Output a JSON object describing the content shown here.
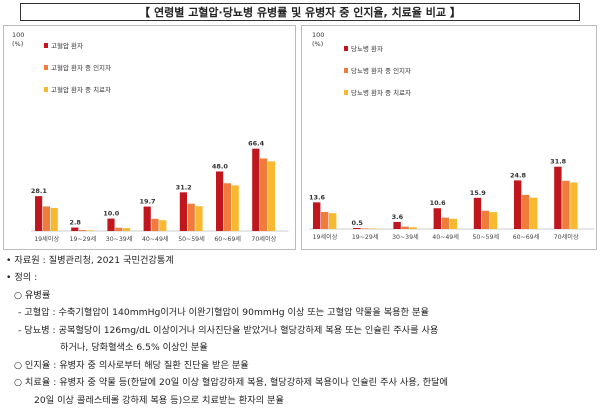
{
  "title": "【 연령별 고혈압·당뇨병 유병률 및 유병자 중 인지율, 치료율 비교 】",
  "colors": {
    "prevalence": "#c0161d",
    "awareness": "#f07c3c",
    "treatment": "#f7b832"
  },
  "chart_data": [
    {
      "type": "bar",
      "y_unit": "100\n(%)",
      "ylim": [
        0,
        100
      ],
      "categories": [
        "19세이상",
        "19~29세",
        "30~39세",
        "40~49세",
        "50~59세",
        "60~69세",
        "70세이상"
      ],
      "series": [
        {
          "name": "고혈압 환자",
          "values": [
            28.1,
            2.8,
            10.0,
            19.7,
            31.2,
            48.0,
            66.4
          ]
        },
        {
          "name": "고혈압 환자 중 인지자",
          "values": [
            19.8,
            0.8,
            2.6,
            9.8,
            22.0,
            38.5,
            58.5
          ]
        },
        {
          "name": "고혈압 환자 중 치료자",
          "values": [
            18.6,
            0.6,
            2.3,
            8.7,
            20.0,
            36.8,
            56.2
          ]
        }
      ],
      "data_labels": [
        "28.1",
        "2.8",
        "10.0",
        "19.7",
        "31.2",
        "48.0",
        "66.4"
      ],
      "legend": "top-left"
    },
    {
      "type": "bar",
      "y_unit": "100\n(%)",
      "ylim": [
        0,
        100
      ],
      "categories": [
        "19세이상",
        "19~29세",
        "30~39세",
        "40~49세",
        "50~59세",
        "60~69세",
        "70세이상"
      ],
      "series": [
        {
          "name": "당뇨병 환자",
          "values": [
            13.6,
            0.5,
            3.6,
            10.6,
            15.9,
            24.8,
            31.8
          ]
        },
        {
          "name": "당뇨병 환자 중 인지자",
          "values": [
            8.7,
            0.1,
            1.2,
            5.8,
            9.3,
            17.4,
            24.6
          ]
        },
        {
          "name": "당뇨병 환자 중 치료자",
          "values": [
            8.1,
            0.1,
            0.9,
            5.2,
            8.6,
            16.0,
            23.7
          ]
        }
      ],
      "data_labels": [
        "13.6",
        "0.5",
        "3.6",
        "10.6",
        "15.9",
        "24.8",
        "31.8"
      ],
      "legend": "top-left"
    }
  ],
  "notes": {
    "source": "• 자료원 : 질병관리청, 2021 국민건강통계",
    "definition": "• 정의 :",
    "prevalence": "○ 유병률",
    "hypertension": "- 고혈압 : 수축기혈압이 140mmHg이거나 이완기혈압이 90mmHg 이상 또는 고혈압 약물을 복용한 분율",
    "diabetes_1": "- 당뇨병 : 공복혈당이 126mg/dL 이상이거나 의사진단을 받았거나 혈당강하제 복용 또는 인슐린 주사를 사용",
    "diabetes_2": "하거나, 당화혈색소 6.5% 이상인 분율",
    "awareness": "○ 인지율 : 유병자 중 의사로부터 해당 질환 진단을 받은 분율",
    "treatment_1": "○ 치료율 : 유병자 중 약물 등(한달에 20일 이상 혈압강하제 복용, 혈당강하제 복용이나 인슐린 주사 사용, 한달에",
    "treatment_2": "20일 이상 콜레스테롤 강하제 복용 등)으로 치료받는 환자의 분율"
  }
}
